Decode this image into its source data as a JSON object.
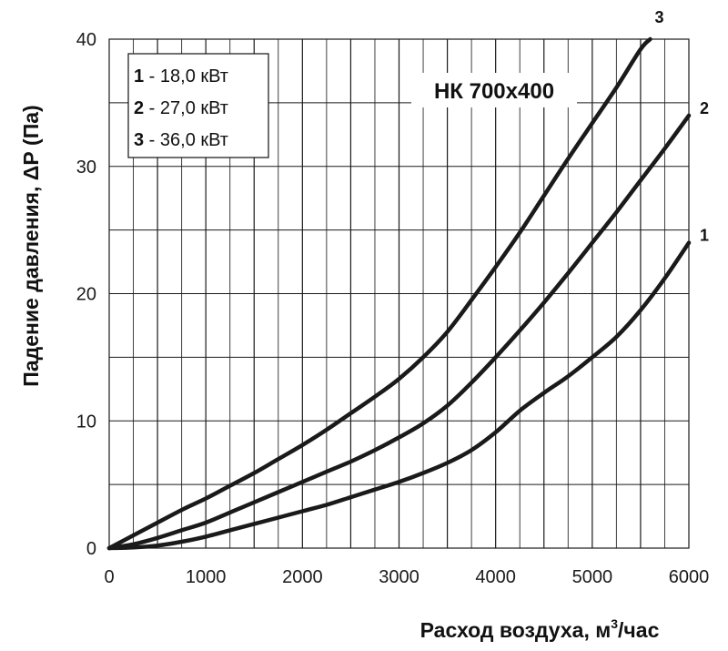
{
  "chart_data": {
    "type": "line",
    "title": "НК 700x400",
    "xlabel": "Расход воздуха, м",
    "xlabel_sup": "3",
    "xlabel_tail": "/час",
    "ylabel": "Падение давления, ΔР (Па)",
    "xlim": [
      0,
      6000
    ],
    "ylim": [
      0,
      40
    ],
    "x_ticks": [
      0,
      1000,
      2000,
      3000,
      4000,
      5000,
      6000
    ],
    "y_ticks": [
      0,
      10,
      20,
      30,
      40
    ],
    "x_tick_labels": [
      "0",
      "1000",
      "2000",
      "3000",
      "4000",
      "5000",
      "6000"
    ],
    "y_tick_labels": [
      "0",
      "10",
      "20",
      "30",
      "40"
    ],
    "grid": true,
    "legend_position": "top-left",
    "series": [
      {
        "name": "1",
        "legend_number": "1",
        "legend_text": " - 18,0 кВт",
        "x": [
          0,
          250,
          500,
          750,
          1000,
          1250,
          1500,
          1750,
          2000,
          2250,
          2500,
          2750,
          3000,
          3250,
          3500,
          3750,
          4000,
          4250,
          4500,
          4750,
          5000,
          5250,
          5500,
          5750,
          6000
        ],
        "y": [
          0,
          0.05,
          0.2,
          0.5,
          0.9,
          1.4,
          1.9,
          2.4,
          2.9,
          3.4,
          4.0,
          4.6,
          5.2,
          5.9,
          6.7,
          7.7,
          9.1,
          10.8,
          12.2,
          13.5,
          15.0,
          16.6,
          18.7,
          21.2,
          24.0
        ]
      },
      {
        "name": "2",
        "legend_number": "2",
        "legend_text": " - 27,0 кВт",
        "x": [
          0,
          250,
          500,
          750,
          1000,
          1250,
          1500,
          1750,
          2000,
          2250,
          2500,
          2750,
          3000,
          3250,
          3500,
          3750,
          4000,
          4250,
          4500,
          4750,
          5000,
          5250,
          5500,
          5750,
          6000
        ],
        "y": [
          0,
          0.3,
          0.8,
          1.4,
          2.0,
          2.8,
          3.6,
          4.4,
          5.2,
          6.0,
          6.8,
          7.7,
          8.7,
          9.8,
          11.2,
          13.0,
          15.0,
          17.1,
          19.3,
          21.6,
          24.0,
          26.4,
          28.9,
          31.4,
          34.0
        ]
      },
      {
        "name": "3",
        "legend_number": "3",
        "legend_text": " - 36,0 кВт",
        "x": [
          0,
          250,
          500,
          750,
          1000,
          1250,
          1500,
          1750,
          2000,
          2250,
          2500,
          2750,
          3000,
          3250,
          3500,
          3750,
          4000,
          4250,
          4500,
          4750,
          5000,
          5250,
          5500,
          5600
        ],
        "y": [
          0,
          1.0,
          2.0,
          3.0,
          3.9,
          4.9,
          5.9,
          7.0,
          8.1,
          9.3,
          10.6,
          11.9,
          13.3,
          15.0,
          17.0,
          19.5,
          22.1,
          24.8,
          27.7,
          30.6,
          33.4,
          36.2,
          39.2,
          40.0
        ]
      }
    ]
  }
}
